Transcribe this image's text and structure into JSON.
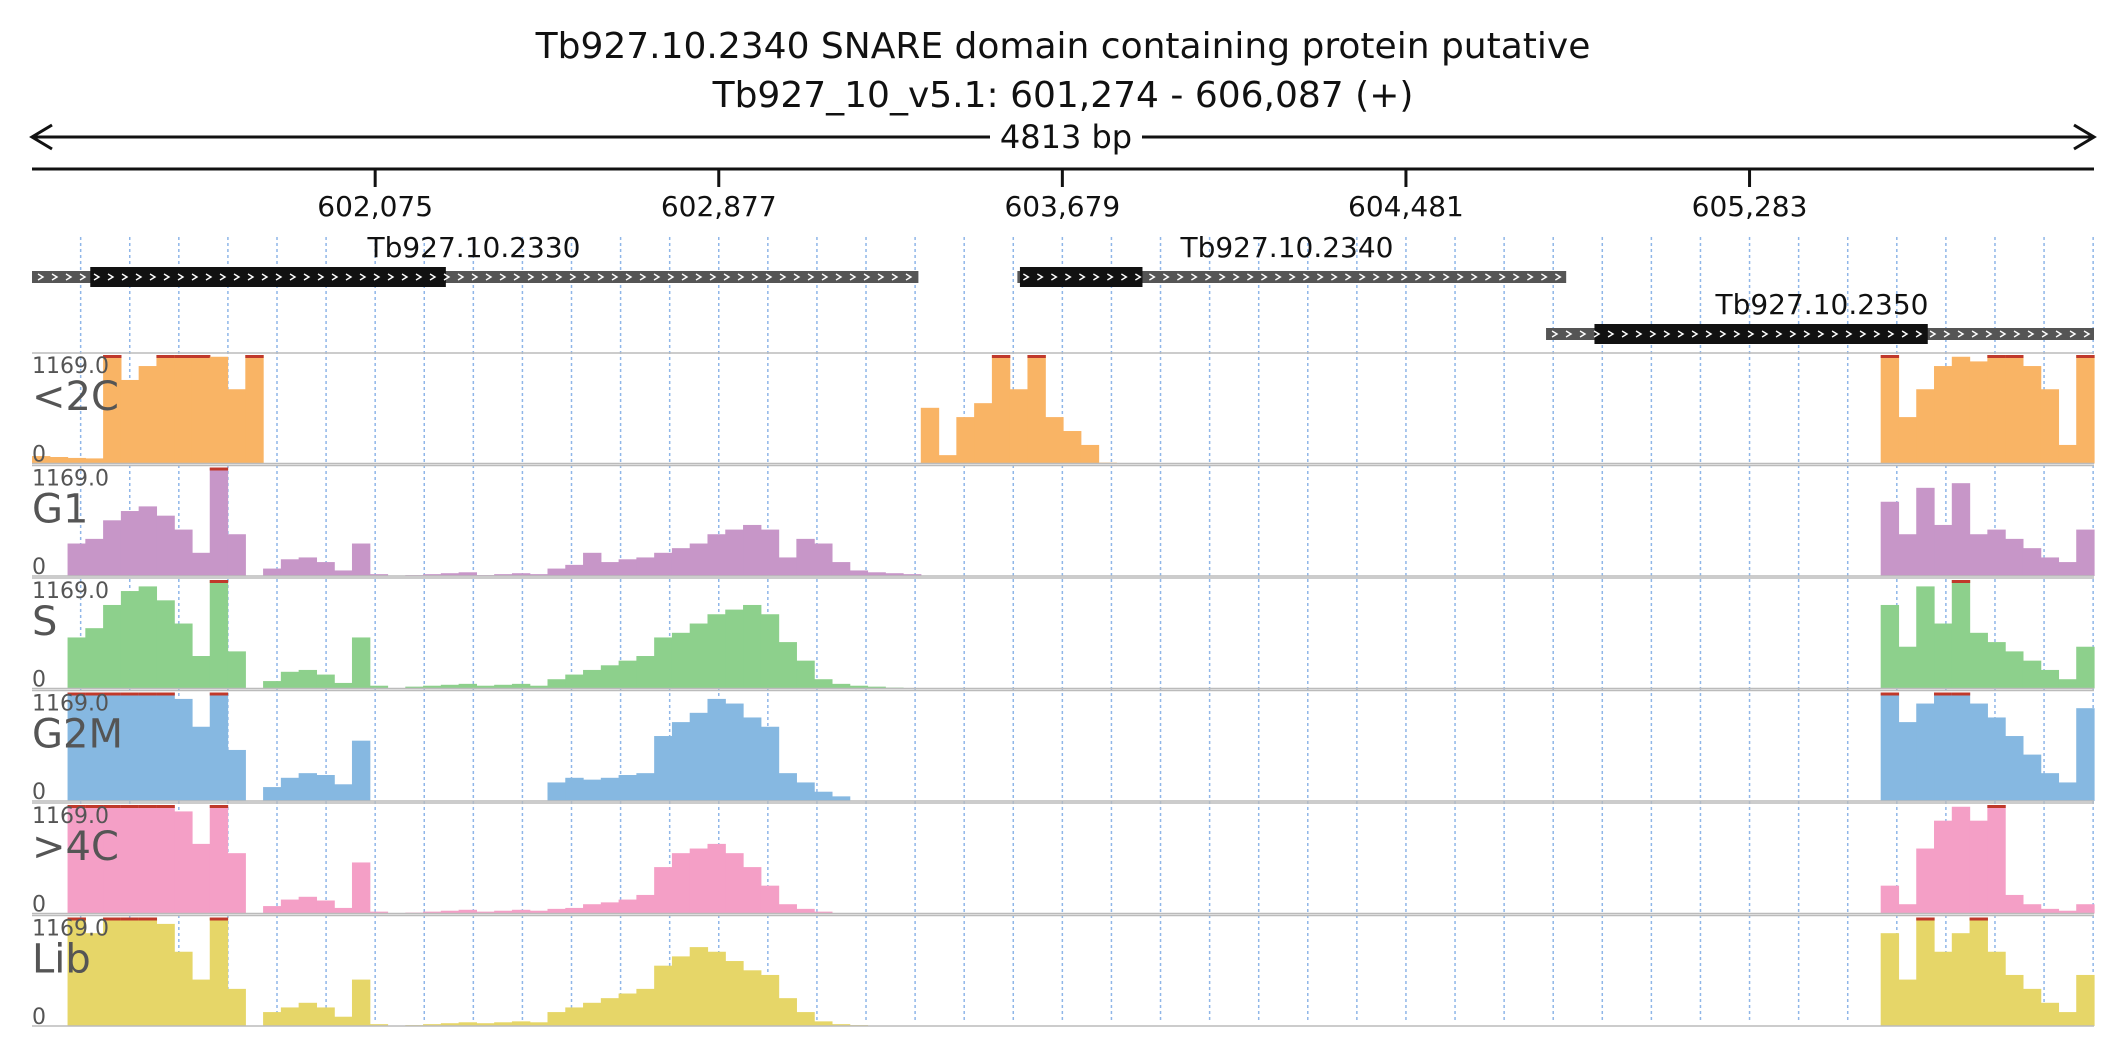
{
  "title": {
    "line1": "Tb927.10.2340  SNARE domain containing protein  putative",
    "line2": "Tb927_10_v5.1: 601,274 - 606,087 (+)"
  },
  "span_label": "4813 bp",
  "chart_data": {
    "type": "area",
    "region": {
      "chrom": "Tb927_10_v5.1",
      "start": 601274,
      "end": 606087,
      "strand": "+"
    },
    "xlim": [
      601274,
      606087
    ],
    "ticks": [
      "602,075",
      "602,877",
      "603,679",
      "604,481",
      "605,283"
    ],
    "tick_values": [
      602075,
      602877,
      603679,
      604481,
      605283
    ],
    "genes": [
      {
        "name": "Tb927.10.2330",
        "start": 601274,
        "end": 603343,
        "cds_start": 601410,
        "cds_end": 602240,
        "row": 0
      },
      {
        "name": "Tb927.10.2340",
        "start": 603574,
        "end": 604855,
        "cds_start": 603580,
        "cds_end": 603866,
        "row": 0
      },
      {
        "name": "Tb927.10.2350",
        "start": 604808,
        "end": 606087,
        "cds_start": 604921,
        "cds_end": 605699,
        "row": 1
      }
    ],
    "ylim": [
      0,
      1169.0
    ],
    "y_max_label": "1169.0",
    "y_min_label": "0",
    "series": [
      {
        "name": "<2C",
        "color": "#f9b465",
        "clip_color": "#c0392b",
        "values": [
          80,
          70,
          60,
          55,
          1169,
          900,
          1050,
          1169,
          1169,
          1169,
          1150,
          800,
          1169,
          0,
          0,
          0,
          0,
          0,
          0,
          0,
          0,
          0,
          0,
          0,
          0,
          0,
          0,
          0,
          0,
          0,
          0,
          0,
          0,
          0,
          0,
          0,
          0,
          0,
          0,
          0,
          0,
          0,
          0,
          0,
          0,
          0,
          0,
          0,
          0,
          0,
          600,
          90,
          500,
          650,
          1169,
          800,
          1169,
          500,
          350,
          200,
          10,
          0,
          0,
          0,
          0,
          0,
          0,
          0,
          0,
          0,
          0,
          0,
          0,
          0,
          0,
          0,
          0,
          0,
          0,
          0,
          0,
          0,
          0,
          0,
          0,
          0,
          0,
          0,
          0,
          0,
          0,
          0,
          0,
          0,
          0,
          0,
          0,
          0,
          0,
          0,
          0,
          0,
          0,
          0,
          1169,
          500,
          800,
          1050,
          1150,
          1100,
          1169,
          1169,
          1050,
          800,
          200,
          1169
        ]
      },
      {
        "name": "G1",
        "color": "#c796c8",
        "clip_color": "#c0392b",
        "values": [
          0,
          0,
          350,
          400,
          600,
          700,
          750,
          650,
          500,
          250,
          1169,
          450,
          0,
          80,
          180,
          200,
          150,
          60,
          350,
          20,
          0,
          10,
          20,
          30,
          40,
          10,
          20,
          30,
          20,
          80,
          120,
          250,
          150,
          180,
          200,
          250,
          300,
          350,
          450,
          500,
          550,
          500,
          200,
          400,
          350,
          150,
          60,
          40,
          30,
          20,
          0,
          0,
          0,
          0,
          0,
          0,
          0,
          0,
          0,
          0,
          0,
          0,
          0,
          0,
          0,
          0,
          0,
          0,
          0,
          0,
          0,
          0,
          0,
          0,
          0,
          0,
          0,
          0,
          0,
          0,
          0,
          0,
          0,
          0,
          0,
          0,
          0,
          0,
          0,
          0,
          0,
          0,
          0,
          0,
          0,
          0,
          0,
          0,
          0,
          0,
          0,
          0,
          0,
          0,
          800,
          450,
          950,
          550,
          1000,
          450,
          500,
          400,
          300,
          200,
          150,
          500
        ]
      },
      {
        "name": "S",
        "color": "#8dd08c",
        "clip_color": "#c0392b",
        "values": [
          0,
          0,
          550,
          650,
          900,
          1050,
          1100,
          950,
          700,
          350,
          1169,
          400,
          0,
          80,
          180,
          200,
          150,
          60,
          550,
          30,
          0,
          20,
          30,
          40,
          50,
          30,
          40,
          50,
          30,
          100,
          150,
          200,
          250,
          300,
          350,
          550,
          600,
          700,
          800,
          850,
          900,
          800,
          500,
          300,
          100,
          50,
          30,
          20,
          10,
          0,
          0,
          0,
          0,
          0,
          0,
          0,
          0,
          0,
          0,
          0,
          0,
          0,
          0,
          0,
          0,
          0,
          0,
          0,
          0,
          0,
          0,
          0,
          0,
          0,
          0,
          0,
          0,
          0,
          0,
          0,
          0,
          0,
          0,
          0,
          0,
          0,
          0,
          0,
          0,
          0,
          0,
          0,
          0,
          0,
          0,
          0,
          0,
          0,
          0,
          0,
          0,
          0,
          0,
          0,
          900,
          450,
          1100,
          700,
          1169,
          600,
          500,
          400,
          300,
          200,
          100,
          450
        ]
      },
      {
        "name": "G2M",
        "color": "#86b8e1",
        "clip_color": "#c0392b",
        "values": [
          0,
          0,
          1169,
          1169,
          1169,
          1169,
          1169,
          1169,
          1100,
          800,
          1169,
          550,
          0,
          150,
          250,
          300,
          280,
          180,
          650,
          0,
          0,
          0,
          0,
          0,
          0,
          0,
          0,
          0,
          0,
          200,
          250,
          230,
          250,
          280,
          300,
          700,
          850,
          950,
          1100,
          1050,
          900,
          800,
          300,
          200,
          100,
          50,
          0,
          0,
          0,
          0,
          0,
          0,
          0,
          0,
          0,
          0,
          0,
          0,
          0,
          0,
          0,
          0,
          0,
          0,
          0,
          0,
          0,
          0,
          0,
          0,
          0,
          0,
          0,
          0,
          0,
          0,
          0,
          0,
          0,
          0,
          0,
          0,
          0,
          0,
          0,
          0,
          0,
          0,
          0,
          0,
          0,
          0,
          0,
          0,
          0,
          0,
          0,
          0,
          0,
          0,
          0,
          0,
          0,
          0,
          1169,
          850,
          1050,
          1169,
          1169,
          1050,
          900,
          700,
          500,
          300,
          200,
          1000
        ]
      },
      {
        "name": ">4C",
        "color": "#f49fc6",
        "clip_color": "#c0392b",
        "values": [
          0,
          0,
          1169,
          1169,
          1169,
          1169,
          1169,
          1169,
          1100,
          750,
          1169,
          650,
          0,
          80,
          150,
          180,
          140,
          60,
          550,
          20,
          0,
          10,
          20,
          30,
          40,
          20,
          30,
          40,
          30,
          50,
          60,
          100,
          120,
          150,
          200,
          500,
          650,
          700,
          750,
          650,
          500,
          300,
          100,
          50,
          20,
          0,
          0,
          0,
          0,
          0,
          0,
          0,
          0,
          0,
          0,
          0,
          0,
          0,
          0,
          0,
          0,
          0,
          0,
          0,
          0,
          0,
          0,
          0,
          0,
          0,
          0,
          0,
          0,
          0,
          0,
          0,
          0,
          0,
          0,
          0,
          0,
          0,
          0,
          0,
          0,
          0,
          0,
          0,
          0,
          0,
          0,
          0,
          0,
          0,
          0,
          0,
          0,
          0,
          0,
          0,
          0,
          0,
          0,
          0,
          300,
          100,
          700,
          1000,
          1150,
          1000,
          1169,
          200,
          100,
          50,
          30,
          100
        ]
      },
      {
        "name": "Lib",
        "color": "#e6d668",
        "clip_color": "#c0392b",
        "values": [
          0,
          0,
          1169,
          1000,
          1169,
          1169,
          1169,
          1100,
          800,
          500,
          1169,
          400,
          0,
          150,
          200,
          250,
          200,
          100,
          500,
          20,
          0,
          10,
          20,
          30,
          40,
          30,
          40,
          50,
          40,
          150,
          200,
          250,
          300,
          350,
          400,
          650,
          750,
          850,
          800,
          700,
          600,
          550,
          300,
          150,
          50,
          20,
          10,
          0,
          0,
          0,
          0,
          0,
          0,
          0,
          0,
          0,
          0,
          0,
          0,
          0,
          0,
          0,
          0,
          0,
          0,
          0,
          0,
          0,
          0,
          0,
          0,
          0,
          0,
          0,
          0,
          0,
          0,
          0,
          0,
          0,
          0,
          0,
          0,
          0,
          0,
          0,
          0,
          0,
          0,
          0,
          0,
          0,
          0,
          0,
          0,
          0,
          0,
          0,
          0,
          0,
          0,
          0,
          0,
          0,
          1000,
          500,
          1169,
          800,
          1000,
          1169,
          800,
          550,
          400,
          250,
          150,
          550
        ]
      }
    ]
  }
}
